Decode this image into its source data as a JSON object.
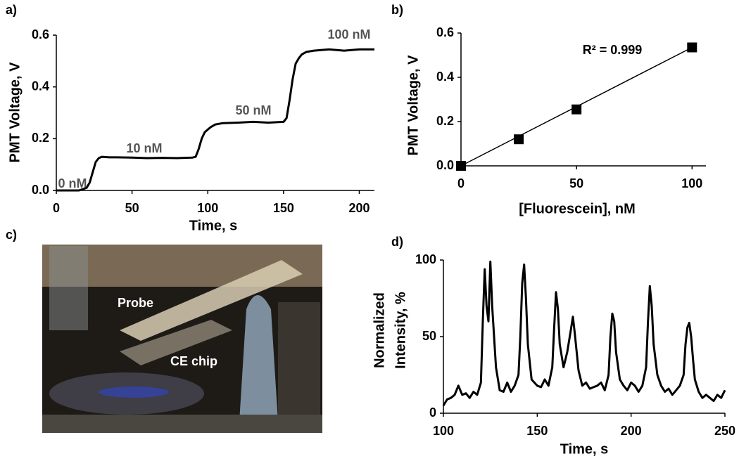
{
  "chart_data": [
    {
      "type": "line",
      "label": "a)",
      "xlabel": "Time, s",
      "ylabel": "PMT Voltage, V",
      "x": [
        0,
        5,
        10,
        15,
        20,
        22,
        24,
        26,
        28,
        30,
        35,
        40,
        50,
        60,
        70,
        80,
        90,
        92,
        94,
        96,
        98,
        100,
        102,
        105,
        110,
        120,
        130,
        140,
        150,
        152,
        154,
        156,
        158,
        160,
        162,
        165,
        170,
        180,
        190,
        200,
        210
      ],
      "values": [
        0.0,
        0.0,
        0.0,
        0.0,
        0.01,
        0.03,
        0.07,
        0.11,
        0.125,
        0.13,
        0.128,
        0.128,
        0.127,
        0.125,
        0.126,
        0.125,
        0.127,
        0.13,
        0.16,
        0.2,
        0.225,
        0.235,
        0.245,
        0.255,
        0.26,
        0.262,
        0.265,
        0.262,
        0.265,
        0.28,
        0.35,
        0.43,
        0.49,
        0.51,
        0.525,
        0.535,
        0.54,
        0.545,
        0.54,
        0.545,
        0.545
      ],
      "color": "#000000",
      "annotations": [
        "0 nM",
        "10 nM",
        "50 nM",
        "100 nM"
      ],
      "xlim": [
        0,
        210
      ],
      "xticks": [
        0,
        50,
        100,
        150,
        200
      ],
      "ylim": [
        0,
        0.6
      ],
      "yticks": [
        {
          "value": 0,
          "label": "0.0"
        },
        0.2,
        0.4,
        0.6
      ]
    },
    {
      "type": "scatter",
      "label": "b)",
      "xlabel": "[Fluorescein], nM",
      "ylabel": "PMT Voltage, V",
      "x": [
        0,
        25,
        50,
        100
      ],
      "values": [
        0,
        0.12,
        0.255,
        0.535
      ],
      "color": "#000000",
      "fit_line": {
        "x": [
          0,
          100
        ],
        "values": [
          0,
          0.535
        ]
      },
      "annotations": [
        "R² = 0.999"
      ],
      "xlim": [
        0,
        106
      ],
      "xticks": [
        0,
        50,
        100
      ],
      "ylim": [
        0,
        0.6
      ],
      "yticks": [
        {
          "value": 0,
          "label": "0.0"
        },
        0.2,
        0.4,
        0.6
      ]
    },
    {
      "type": "line",
      "label": "d)",
      "xlabel": "Time, s",
      "ylabel": [
        "Normalized",
        "Intensity, %"
      ],
      "x": [
        100,
        102,
        104,
        106,
        108,
        110,
        112,
        114,
        116,
        118,
        120,
        121,
        122,
        123,
        124,
        125,
        126,
        128,
        130,
        132,
        134,
        136,
        138,
        140,
        141,
        142,
        143,
        144,
        145,
        147,
        150,
        152,
        154,
        156,
        158,
        159,
        160,
        161,
        162,
        164,
        166,
        168,
        169,
        170,
        172,
        174,
        176,
        178,
        180,
        182,
        184,
        186,
        188,
        189,
        190,
        191,
        192,
        194,
        196,
        198,
        200,
        202,
        204,
        206,
        208,
        209,
        210,
        211,
        212,
        214,
        216,
        218,
        220,
        222,
        224,
        226,
        228,
        229,
        230,
        231,
        232,
        233,
        234,
        236,
        238,
        240,
        242,
        244,
        246,
        248,
        250
      ],
      "values": [
        5,
        9,
        10,
        12,
        18,
        12,
        13,
        10,
        14,
        12,
        20,
        60,
        94,
        70,
        60,
        99,
        70,
        30,
        15,
        14,
        20,
        14,
        18,
        25,
        50,
        85,
        97,
        75,
        45,
        22,
        18,
        17,
        22,
        18,
        30,
        55,
        79,
        68,
        45,
        30,
        40,
        55,
        63,
        52,
        28,
        18,
        20,
        16,
        17,
        18,
        20,
        15,
        25,
        50,
        65,
        60,
        40,
        22,
        18,
        15,
        20,
        18,
        14,
        18,
        30,
        60,
        83,
        70,
        45,
        25,
        18,
        14,
        16,
        12,
        15,
        18,
        25,
        45,
        56,
        59,
        50,
        35,
        22,
        14,
        10,
        12,
        10,
        8,
        12,
        10,
        15
      ],
      "color": "#000000",
      "xlim": [
        100,
        250
      ],
      "xticks": [
        100,
        150,
        200,
        250
      ],
      "ylim": [
        0,
        100
      ],
      "yticks": [
        0,
        50,
        100
      ]
    }
  ],
  "photo": {
    "label": "c)",
    "annotations": [
      "Probe",
      "CE chip"
    ]
  }
}
